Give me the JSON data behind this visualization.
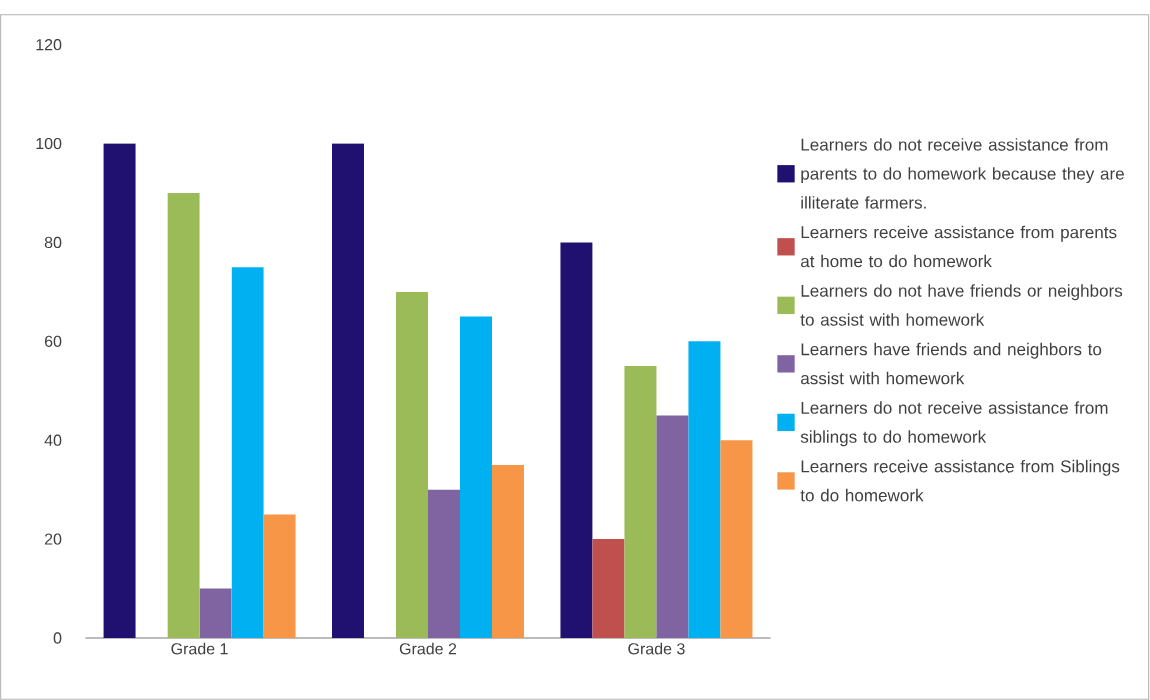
{
  "chart_data": {
    "type": "bar",
    "categories": [
      "Grade 1",
      "Grade 2",
      "Grade 3"
    ],
    "series": [
      {
        "name": "Learners do not receive assistance from parents to do homework because they are illiterate farmers.",
        "color": "#201070",
        "values": [
          100,
          100,
          80
        ]
      },
      {
        "name": "Learners receive assistance from parents at home to do homework",
        "color": "#c0504d",
        "values": [
          0,
          0,
          20
        ]
      },
      {
        "name": "Learners do not have friends or neighbors to assist with homework",
        "color": "#9bbb59",
        "values": [
          90,
          70,
          55
        ]
      },
      {
        "name": "Learners have friends and neighbors to assist with homework",
        "color": "#8064a2",
        "values": [
          10,
          30,
          45
        ]
      },
      {
        "name": "Learners do not receive assistance from siblings to do homework",
        "color": "#00b0f0",
        "values": [
          75,
          65,
          60
        ]
      },
      {
        "name": "Learners receive assistance from Siblings to do homework",
        "color": "#f79646",
        "values": [
          25,
          35,
          40
        ]
      }
    ],
    "ylim": [
      0,
      120
    ],
    "yticks": [
      0,
      20,
      40,
      60,
      80,
      100,
      120
    ],
    "legend": "right"
  }
}
